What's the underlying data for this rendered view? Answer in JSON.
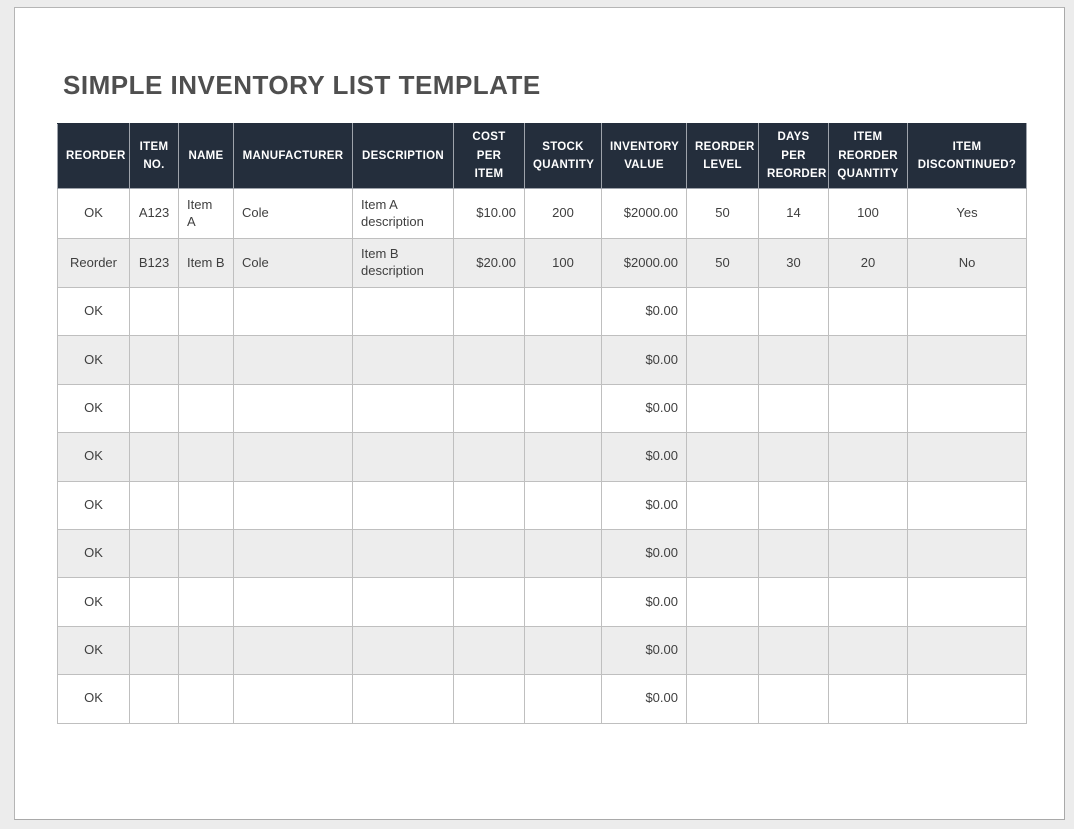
{
  "page": {
    "title": "SIMPLE INVENTORY LIST TEMPLATE"
  },
  "table": {
    "columns": [
      {
        "id": "reorder",
        "label": "REORDER"
      },
      {
        "id": "item-no",
        "label": "ITEM\nNO."
      },
      {
        "id": "name",
        "label": "NAME"
      },
      {
        "id": "manufacturer",
        "label": "MANUFACTURER"
      },
      {
        "id": "description",
        "label": "DESCRIPTION"
      },
      {
        "id": "cost-per-item",
        "label": "COST\nPER ITEM"
      },
      {
        "id": "stock-quantity",
        "label": "STOCK\nQUANTITY"
      },
      {
        "id": "inventory-value",
        "label": "INVENTORY\nVALUE"
      },
      {
        "id": "reorder-level",
        "label": "REORDER\nLEVEL"
      },
      {
        "id": "days-per-reorder",
        "label": "DAYS\nPER\nREORDER"
      },
      {
        "id": "item-reorder-qty",
        "label": "ITEM\nREORDER\nQUANTITY"
      },
      {
        "id": "item-discontinued",
        "label": "ITEM\nDISCONTINUED?"
      }
    ],
    "rows": [
      [
        "OK",
        "A123",
        "Item\nA",
        "Cole",
        "Item A\ndescription",
        "$10.00",
        "200",
        "$2000.00",
        "50",
        "14",
        "100",
        "Yes"
      ],
      [
        "Reorder",
        "B123",
        "Item B",
        "Cole",
        "Item B\ndescription",
        "$20.00",
        "100",
        "$2000.00",
        "50",
        "30",
        "20",
        "No"
      ],
      [
        "OK",
        "",
        "",
        "",
        "",
        "",
        "",
        "$0.00",
        "",
        "",
        "",
        ""
      ],
      [
        "OK",
        "",
        "",
        "",
        "",
        "",
        "",
        "$0.00",
        "",
        "",
        "",
        ""
      ],
      [
        "OK",
        "",
        "",
        "",
        "",
        "",
        "",
        "$0.00",
        "",
        "",
        "",
        ""
      ],
      [
        "OK",
        "",
        "",
        "",
        "",
        "",
        "",
        "$0.00",
        "",
        "",
        "",
        ""
      ],
      [
        "OK",
        "",
        "",
        "",
        "",
        "",
        "",
        "$0.00",
        "",
        "",
        "",
        ""
      ],
      [
        "OK",
        "",
        "",
        "",
        "",
        "",
        "",
        "$0.00",
        "",
        "",
        "",
        ""
      ],
      [
        "OK",
        "",
        "",
        "",
        "",
        "",
        "",
        "$0.00",
        "",
        "",
        "",
        ""
      ],
      [
        "OK",
        "",
        "",
        "",
        "",
        "",
        "",
        "$0.00",
        "",
        "",
        "",
        ""
      ],
      [
        "OK",
        "",
        "",
        "",
        "",
        "",
        "",
        "$0.00",
        "",
        "",
        "",
        ""
      ]
    ]
  },
  "colors": {
    "header_bg": "#242E3C",
    "header_text": "#FFFFFF",
    "row_alt_bg": "#EDEDED",
    "grid_line": "#BFBFBF",
    "title_text": "#4F4F4F",
    "body_text": "#3F3F3F",
    "page_bg": "#FFFFFF",
    "canvas_bg": "#ECECEC"
  }
}
